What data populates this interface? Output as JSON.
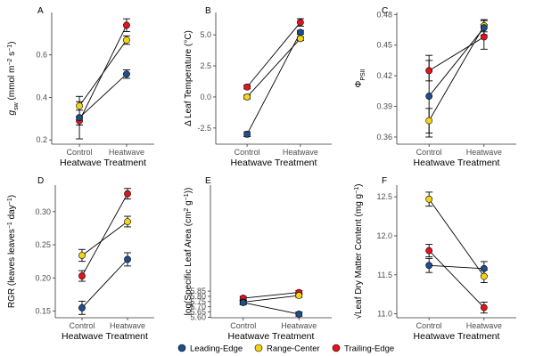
{
  "figure": {
    "legend": [
      {
        "name": "Leading-Edge",
        "color": "#1f4e8c"
      },
      {
        "name": "Range-Center",
        "color": "#f5d414"
      },
      {
        "name": "Trailing-Edge",
        "color": "#e3141c"
      }
    ]
  },
  "chart_data": [
    {
      "type": "line",
      "panel": "A",
      "title": "",
      "xlabel": "Heatwave Treatment",
      "ylabel": "g_sw (mmol m^-2 s^-1)",
      "ylabel_parts": {
        "main": "g",
        "sub": "sw",
        "tail": " (mmol m",
        "sup1": "−2",
        "mid": " s",
        "sup2": "−1",
        "close": ")"
      },
      "categories": [
        "Control",
        "Heatwave"
      ],
      "ylim": [
        0.18,
        0.8
      ],
      "yticks": [
        "0.2",
        "0.4",
        "0.6"
      ],
      "series": [
        {
          "name": "Leading-Edge",
          "values": [
            0.305,
            0.51
          ],
          "errors": [
            0.1,
            0.02
          ]
        },
        {
          "name": "Range-Center",
          "values": [
            0.36,
            0.67
          ],
          "errors": [
            0.02,
            0.02
          ]
        },
        {
          "name": "Trailing-Edge",
          "values": [
            0.29,
            0.74
          ],
          "errors": [
            0.02,
            0.03
          ]
        }
      ]
    },
    {
      "type": "line",
      "panel": "B",
      "title": "",
      "xlabel": "Heatwave Treatment",
      "ylabel": "Δ Leaf Temperature (°C)",
      "categories": [
        "Control",
        "Heatwave"
      ],
      "ylim": [
        -3.8,
        6.8
      ],
      "yticks": [
        "-2.5",
        "0.0",
        "2.5",
        "5.0"
      ],
      "series": [
        {
          "name": "Leading-Edge",
          "values": [
            -3.0,
            5.2
          ],
          "errors": [
            0.2,
            0.15
          ]
        },
        {
          "name": "Range-Center",
          "values": [
            0.0,
            4.7
          ],
          "errors": [
            0.15,
            0.15
          ]
        },
        {
          "name": "Trailing-Edge",
          "values": [
            0.8,
            6.0
          ],
          "errors": [
            0.15,
            0.3
          ]
        }
      ]
    },
    {
      "type": "line",
      "panel": "C",
      "title": "",
      "xlabel": "Heatwave Treatment",
      "ylabel": "Φ_PSII",
      "ylabel_parts": {
        "main": "Φ",
        "sub": "PSII"
      },
      "categories": [
        "Control",
        "Heatwave"
      ],
      "ylim": [
        0.353,
        0.482
      ],
      "yticks": [
        "0.36",
        "0.39",
        "0.42",
        "0.45",
        "0.48"
      ],
      "series": [
        {
          "name": "Leading-Edge",
          "values": [
            0.4,
            0.467
          ],
          "errors": [
            0.04,
            0.007
          ]
        },
        {
          "name": "Range-Center",
          "values": [
            0.376,
            0.469
          ],
          "errors": [
            0.012,
            0.006
          ]
        },
        {
          "name": "Trailing-Edge",
          "values": [
            0.425,
            0.458
          ],
          "errors": [
            0.01,
            0.012
          ]
        }
      ]
    },
    {
      "type": "line",
      "panel": "D",
      "title": "",
      "xlabel": "Heatwave Treatment",
      "ylabel": "RGR (leaves leaves^-1 day^-1)",
      "ylabel_parts": {
        "main": "RGR (leaves  leaves",
        "sup1": "−1",
        "mid": " day",
        "sup2": "−1",
        "close": ")"
      },
      "categories": [
        "Control",
        "Heatwave"
      ],
      "ylim": [
        0.14,
        0.34
      ],
      "yticks": [
        "0.15",
        "0.20",
        "0.25",
        "0.30"
      ],
      "series": [
        {
          "name": "Leading-Edge",
          "values": [
            0.155,
            0.228
          ],
          "errors": [
            0.01,
            0.01
          ]
        },
        {
          "name": "Range-Center",
          "values": [
            0.234,
            0.285
          ],
          "errors": [
            0.009,
            0.008
          ]
        },
        {
          "name": "Trailing-Edge",
          "values": [
            0.203,
            0.327
          ],
          "errors": [
            0.008,
            0.008
          ]
        }
      ]
    },
    {
      "type": "line",
      "panel": "E",
      "title": "",
      "xlabel": "Heatwave Treatment",
      "ylabel": "log(Specific Leaf Area (cm^2 g^-1))",
      "ylabel_parts": {
        "main": "log(Specific Leaf Area (cm",
        "sup1": "2",
        "mid": " g",
        "sup2": "−1",
        "close": "))"
      },
      "categories": [
        "Control",
        "Heatwave"
      ],
      "ylim": [
        5.595,
        6.865
      ],
      "yticks": [
        "5.60",
        "5.65",
        "5.70",
        "5.75",
        "5.80",
        "5.85"
      ],
      "series": [
        {
          "name": "Leading-Edge",
          "values": [
            5.74,
            5.63
          ],
          "errors": [
            0.02,
            0.02
          ]
        },
        {
          "name": "Range-Center",
          "values": [
            5.745,
            5.808
          ],
          "errors": [
            0.018,
            0.018
          ]
        },
        {
          "name": "Trailing-Edge",
          "values": [
            5.782,
            5.837
          ],
          "errors": [
            0.017,
            0.017
          ]
        }
      ]
    },
    {
      "type": "line",
      "panel": "F",
      "title": "",
      "xlabel": "Heatwave Treatment",
      "ylabel": "√Leaf Dry Matter Content (mg g^-1)",
      "ylabel_parts": {
        "main": "√Leaf Dry Matter Content (mg  g",
        "sup1": "−1",
        "close": ")"
      },
      "categories": [
        "Control",
        "Heatwave"
      ],
      "ylim": [
        10.95,
        12.65
      ],
      "yticks": [
        "11.0",
        "11.5",
        "12.0",
        "12.5"
      ],
      "series": [
        {
          "name": "Leading-Edge",
          "values": [
            11.62,
            11.58
          ],
          "errors": [
            0.09,
            0.09
          ]
        },
        {
          "name": "Range-Center",
          "values": [
            12.47,
            11.48
          ],
          "errors": [
            0.09,
            0.08
          ]
        },
        {
          "name": "Trailing-Edge",
          "values": [
            11.81,
            11.08
          ],
          "errors": [
            0.08,
            0.07
          ]
        }
      ]
    }
  ]
}
